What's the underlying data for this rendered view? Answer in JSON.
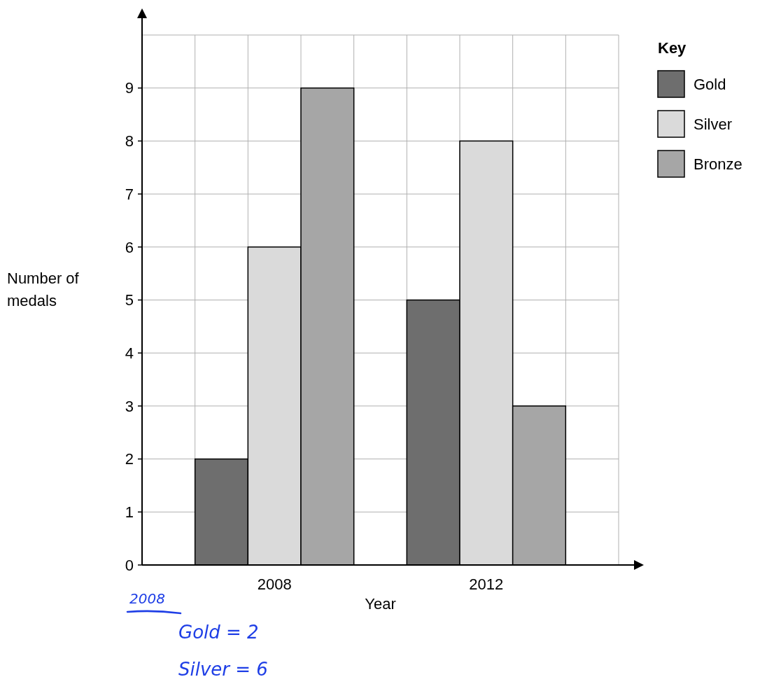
{
  "chart_data": {
    "type": "bar",
    "categories": [
      "2008",
      "2012"
    ],
    "xlabel": "Year",
    "ylabel": "Number of medals",
    "legend_title": "Key",
    "series": [
      {
        "name": "Gold",
        "color": "#6e6e6e",
        "values": [
          2,
          5
        ]
      },
      {
        "name": "Silver",
        "color": "#dadada",
        "values": [
          6,
          8
        ]
      },
      {
        "name": "Bronze",
        "color": "#a6a6a6",
        "values": [
          9,
          3
        ]
      }
    ],
    "ylim": [
      0,
      10
    ],
    "yticks": [
      0,
      1,
      2,
      3,
      4,
      5,
      6,
      7,
      8,
      9
    ],
    "grid": true,
    "legend": "top right",
    "annotations": [
      "2008",
      "Gold = 2",
      "Silver = 6"
    ]
  }
}
